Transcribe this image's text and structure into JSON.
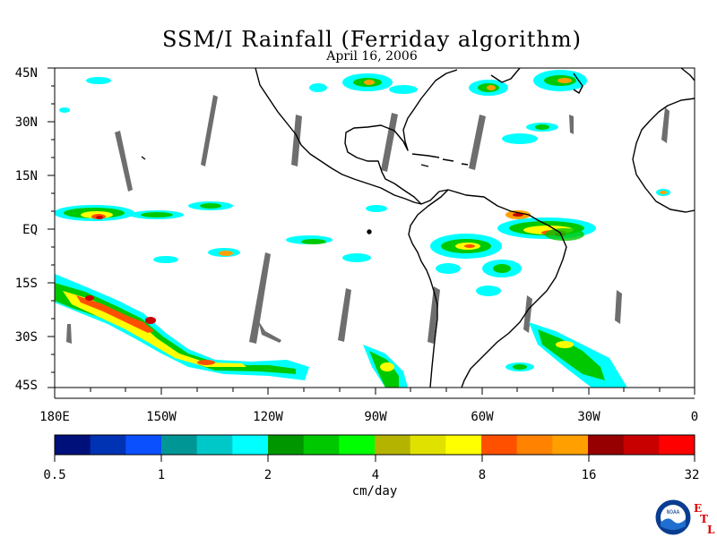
{
  "title": "SSM/I Rainfall (Ferriday algorithm)",
  "date": "April 16, 2006",
  "lat_labels": [
    "45N",
    "30N",
    "15N",
    "EQ",
    "15S",
    "30S",
    "45S"
  ],
  "lon_labels": [
    "180E",
    "150W",
    "120W",
    "90W",
    "60W",
    "30W",
    "0"
  ],
  "colorbar": {
    "colors": [
      "#00107a",
      "#0032b4",
      "#0a50ff",
      "#009696",
      "#00c8c8",
      "#00ffff",
      "#009600",
      "#00c800",
      "#00ff00",
      "#b4b400",
      "#e1e100",
      "#ffff00",
      "#ff5000",
      "#ff8200",
      "#ffa000",
      "#960000",
      "#c80000",
      "#ff0000"
    ],
    "tick_labels": [
      "0.5",
      "1",
      "2",
      "4",
      "8",
      "16",
      "32"
    ],
    "units": "cm/day"
  },
  "logo": {
    "name": "noaa-logo",
    "text": "NOAA",
    "etl_letters": [
      "E",
      "T",
      "L"
    ]
  }
}
